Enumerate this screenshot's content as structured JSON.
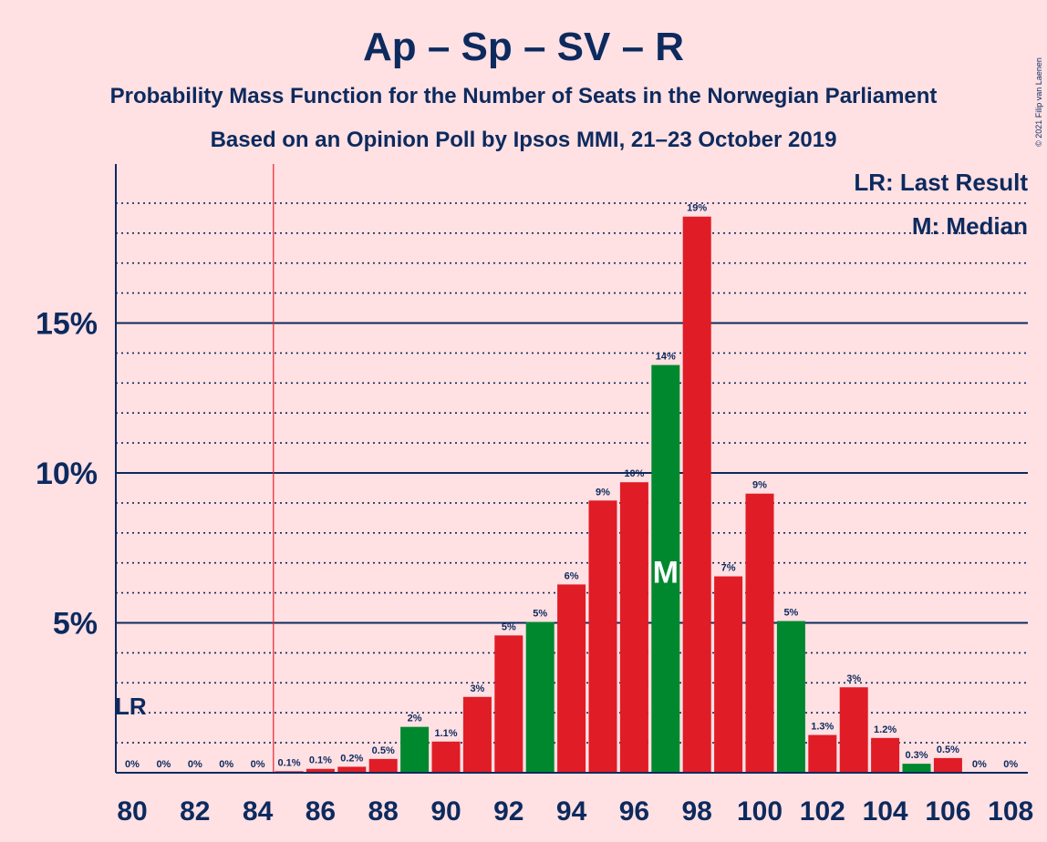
{
  "chart_data": {
    "type": "bar",
    "title": "Ap – Sp – SV – R",
    "subtitle_1": "Probability Mass Function for the Number of Seats in the Norwegian Parliament",
    "subtitle_2": "Based on an Opinion Poll by Ipsos MMI, 21–23 October 2019",
    "copyright": "© 2021 Filip van Laenen",
    "legend": {
      "last_result": "LR: Last Result",
      "median": "M: Median"
    },
    "lr_label": "LR",
    "median_label": "M",
    "last_result_seat": 84.5,
    "median_seat": 97,
    "ylim": [
      0,
      20
    ],
    "y_ticks": [
      {
        "value": 5,
        "label": "5%"
      },
      {
        "value": 10,
        "label": "10%"
      },
      {
        "value": 15,
        "label": "15%"
      }
    ],
    "x_ticks": [
      80,
      82,
      84,
      86,
      88,
      90,
      92,
      94,
      96,
      98,
      100,
      102,
      104,
      106,
      108
    ],
    "bars": [
      {
        "seats": 80,
        "value": 0,
        "label": "0%",
        "color": "#e01c26"
      },
      {
        "seats": 81,
        "value": 0,
        "label": "0%",
        "color": "#e01c26"
      },
      {
        "seats": 82,
        "value": 0,
        "label": "0%",
        "color": "#e01c26"
      },
      {
        "seats": 83,
        "value": 0,
        "label": "0%",
        "color": "#e01c26"
      },
      {
        "seats": 84,
        "value": 0,
        "label": "0%",
        "color": "#e01c26"
      },
      {
        "seats": 85,
        "value": 0.05,
        "label": "0.1%",
        "color": "#e01c26"
      },
      {
        "seats": 86,
        "value": 0.13,
        "label": "0.1%",
        "color": "#e01c26"
      },
      {
        "seats": 87,
        "value": 0.2,
        "label": "0.2%",
        "color": "#e01c26"
      },
      {
        "seats": 88,
        "value": 0.46,
        "label": "0.5%",
        "color": "#e01c26"
      },
      {
        "seats": 89,
        "value": 1.53,
        "label": "2%",
        "color": "#00882f"
      },
      {
        "seats": 90,
        "value": 1.04,
        "label": "1.1%",
        "color": "#e01c26"
      },
      {
        "seats": 91,
        "value": 2.53,
        "label": "3%",
        "color": "#e01c26"
      },
      {
        "seats": 92,
        "value": 4.58,
        "label": "5%",
        "color": "#e01c26"
      },
      {
        "seats": 93,
        "value": 5.03,
        "label": "5%",
        "color": "#00882f"
      },
      {
        "seats": 94,
        "value": 6.28,
        "label": "6%",
        "color": "#e01c26"
      },
      {
        "seats": 95,
        "value": 9.08,
        "label": "9%",
        "color": "#e01c26"
      },
      {
        "seats": 96,
        "value": 9.69,
        "label": "10%",
        "color": "#e01c26"
      },
      {
        "seats": 97,
        "value": 13.6,
        "label": "14%",
        "color": "#00882f"
      },
      {
        "seats": 98,
        "value": 18.55,
        "label": "19%",
        "color": "#e01c26"
      },
      {
        "seats": 99,
        "value": 6.55,
        "label": "7%",
        "color": "#e01c26"
      },
      {
        "seats": 100,
        "value": 9.31,
        "label": "9%",
        "color": "#e01c26"
      },
      {
        "seats": 101,
        "value": 5.06,
        "label": "5%",
        "color": "#00882f"
      },
      {
        "seats": 102,
        "value": 1.26,
        "label": "1.3%",
        "color": "#e01c26"
      },
      {
        "seats": 103,
        "value": 2.85,
        "label": "3%",
        "color": "#e01c26"
      },
      {
        "seats": 104,
        "value": 1.16,
        "label": "1.2%",
        "color": "#e01c26"
      },
      {
        "seats": 105,
        "value": 0.3,
        "label": "0.3%",
        "color": "#00882f"
      },
      {
        "seats": 106,
        "value": 0.49,
        "label": "0.5%",
        "color": "#e01c26"
      },
      {
        "seats": 107,
        "value": 0,
        "label": "0%",
        "color": "#e01c26"
      },
      {
        "seats": 108,
        "value": 0,
        "label": "0%",
        "color": "#e01c26"
      }
    ],
    "colors": {
      "axis": "#0c2a5e",
      "grid": "#0c2a5e",
      "last_result_line": "#e8242c",
      "background": "#ffe0e3"
    }
  }
}
